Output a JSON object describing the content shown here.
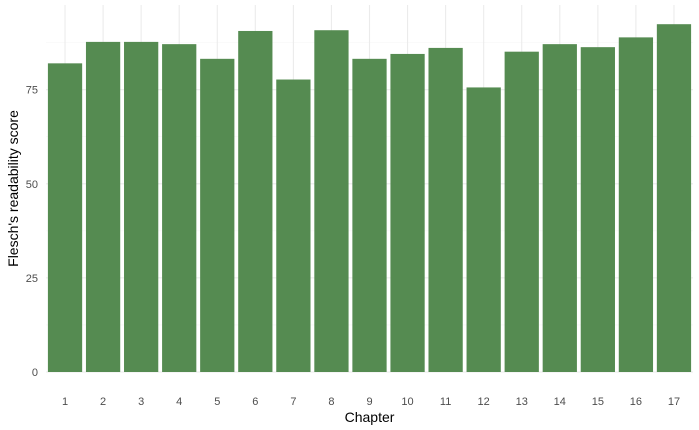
{
  "chart_data": {
    "type": "bar",
    "title": "",
    "xlabel": "Chapter",
    "ylabel": "Flesch's readability score",
    "categories": [
      "1",
      "2",
      "3",
      "4",
      "5",
      "6",
      "7",
      "8",
      "9",
      "10",
      "11",
      "12",
      "13",
      "14",
      "15",
      "16",
      "17"
    ],
    "values": [
      82.0,
      87.7,
      87.7,
      87.1,
      83.2,
      90.6,
      77.7,
      90.8,
      83.2,
      84.5,
      86.1,
      75.6,
      85.1,
      87.1,
      86.3,
      88.9,
      92.4
    ],
    "ylim": [
      0,
      97.5
    ],
    "yticks": [
      0,
      25,
      50,
      75
    ],
    "ytick_labels": [
      "0",
      "25",
      "50",
      "75"
    ],
    "grid": true,
    "legend": "none",
    "bar_color": "#558B51",
    "background": "#FFFFFF",
    "grid_color": "#EBEBEB"
  }
}
